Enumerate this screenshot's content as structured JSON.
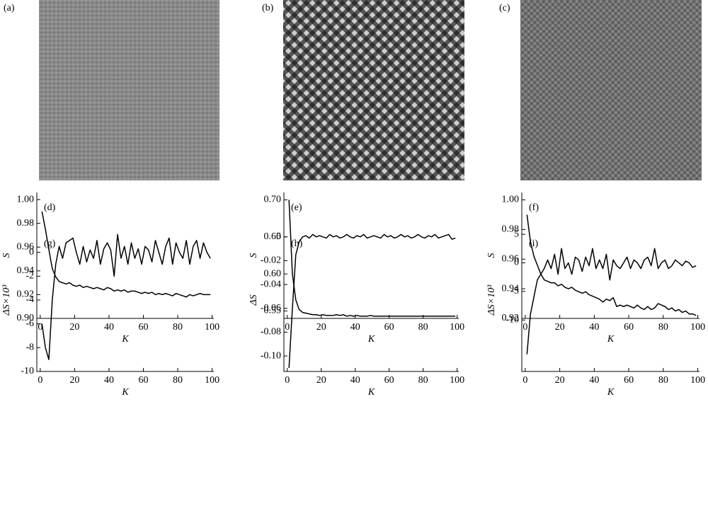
{
  "images": [
    {
      "label": "(a)"
    },
    {
      "label": "(b)"
    },
    {
      "label": "(c)"
    }
  ],
  "chart_data": [
    {
      "type": "line",
      "label": "(d)",
      "xlabel": "K",
      "ylabel": "S",
      "color": "#000000",
      "x": [
        1,
        3,
        5,
        7,
        9,
        11,
        13,
        15,
        17,
        19,
        21,
        23,
        25,
        27,
        29,
        31,
        33,
        35,
        37,
        39,
        41,
        43,
        45,
        47,
        49,
        51,
        53,
        55,
        57,
        59,
        61,
        63,
        65,
        67,
        69,
        71,
        73,
        75,
        77,
        79,
        81,
        83,
        85,
        87,
        89,
        91,
        93,
        95,
        97,
        99
      ],
      "values": [
        0.99,
        0.975,
        0.958,
        0.942,
        0.935,
        0.931,
        0.93,
        0.929,
        0.93,
        0.928,
        0.927,
        0.928,
        0.926,
        0.927,
        0.926,
        0.925,
        0.926,
        0.925,
        0.924,
        0.926,
        0.925,
        0.923,
        0.924,
        0.923,
        0.924,
        0.922,
        0.923,
        0.923,
        0.922,
        0.921,
        0.922,
        0.921,
        0.922,
        0.92,
        0.921,
        0.92,
        0.921,
        0.92,
        0.919,
        0.921,
        0.92,
        0.919,
        0.918,
        0.92,
        0.919,
        0.92,
        0.921,
        0.92,
        0.92,
        0.92
      ],
      "xlim": [
        -2,
        101
      ],
      "xticks": [
        0,
        20,
        40,
        60,
        80,
        100
      ],
      "ylim": [
        0.9,
        1.006
      ],
      "yticks": [
        {
          "value": 0.9,
          "label": "0.90"
        },
        0.92,
        0.94,
        0.96,
        0.98,
        {
          "value": 1.0,
          "label": "1.00"
        }
      ]
    },
    {
      "type": "line",
      "label": "(e)",
      "xlabel": "K",
      "ylabel": "S",
      "color": "#000000",
      "x": [
        1,
        3,
        5,
        7,
        9,
        11,
        13,
        15,
        17,
        19,
        21,
        23,
        25,
        27,
        29,
        31,
        33,
        35,
        37,
        39,
        41,
        43,
        45,
        47,
        49,
        51,
        53,
        55,
        57,
        59,
        61,
        63,
        65,
        67,
        69,
        71,
        73,
        75,
        77,
        79,
        81,
        83,
        85,
        87,
        89,
        91,
        93,
        95,
        97,
        99
      ],
      "values": [
        0.7,
        0.6,
        0.565,
        0.552,
        0.548,
        0.547,
        0.546,
        0.545,
        0.545,
        0.544,
        0.545,
        0.544,
        0.544,
        0.544,
        0.545,
        0.544,
        0.545,
        0.543,
        0.544,
        0.543,
        0.544,
        0.543,
        0.543,
        0.543,
        0.544,
        0.543,
        0.543,
        0.543,
        0.543,
        0.543,
        0.543,
        0.543,
        0.543,
        0.543,
        0.543,
        0.543,
        0.543,
        0.543,
        0.543,
        0.543,
        0.543,
        0.543,
        0.543,
        0.543,
        0.543,
        0.543,
        0.543,
        0.543,
        0.543,
        0.543
      ],
      "xlim": [
        -2,
        101
      ],
      "xticks": [
        0,
        20,
        40,
        60,
        80,
        100
      ],
      "ylim": [
        0.54,
        0.71
      ],
      "yticks": [
        0.55,
        {
          "value": 0.6,
          "label": "0.60"
        },
        0.65,
        {
          "value": 0.7,
          "label": "0.70"
        }
      ]
    },
    {
      "type": "line",
      "label": "(f)",
      "xlabel": "K",
      "ylabel": "S",
      "color": "#000000",
      "x": [
        1,
        3,
        5,
        7,
        9,
        11,
        13,
        15,
        17,
        19,
        21,
        23,
        25,
        27,
        29,
        31,
        33,
        35,
        37,
        39,
        41,
        43,
        45,
        47,
        49,
        51,
        53,
        55,
        57,
        59,
        61,
        63,
        65,
        67,
        69,
        71,
        73,
        75,
        77,
        79,
        81,
        83,
        85,
        87,
        89,
        91,
        93,
        95,
        97,
        99
      ],
      "values": [
        0.99,
        0.972,
        0.962,
        0.956,
        0.95,
        0.946,
        0.945,
        0.944,
        0.944,
        0.942,
        0.943,
        0.941,
        0.94,
        0.941,
        0.939,
        0.938,
        0.937,
        0.938,
        0.936,
        0.935,
        0.934,
        0.933,
        0.931,
        0.933,
        0.932,
        0.934,
        0.928,
        0.929,
        0.928,
        0.929,
        0.928,
        0.927,
        0.929,
        0.927,
        0.926,
        0.928,
        0.926,
        0.927,
        0.93,
        0.929,
        0.928,
        0.926,
        0.927,
        0.925,
        0.926,
        0.924,
        0.925,
        0.923,
        0.923,
        0.922
      ],
      "xlim": [
        -2,
        101
      ],
      "xticks": [
        0,
        20,
        40,
        60,
        80,
        100
      ],
      "ylim": [
        0.92,
        1.005
      ],
      "yticks": [
        0.92,
        0.94,
        0.96,
        0.98,
        {
          "value": 1.0,
          "label": "1.00"
        }
      ]
    },
    {
      "type": "line",
      "label": "(g)",
      "xlabel": "K",
      "ylabel": "ΔS×10³",
      "color": "#000000",
      "x": [
        1,
        3,
        5,
        7,
        9,
        11,
        13,
        15,
        17,
        19,
        21,
        23,
        25,
        27,
        29,
        31,
        33,
        35,
        37,
        39,
        41,
        43,
        45,
        47,
        49,
        51,
        53,
        55,
        57,
        59,
        61,
        63,
        65,
        67,
        69,
        71,
        73,
        75,
        77,
        79,
        81,
        83,
        85,
        87,
        89,
        91,
        93,
        95,
        97,
        99
      ],
      "values": [
        -6,
        -8,
        -9,
        -4,
        -1,
        0.5,
        -0.5,
        0.8,
        1,
        1.2,
        0,
        -1,
        0.5,
        -0.8,
        0.2,
        -0.5,
        1,
        -1,
        0.3,
        0.8,
        0.2,
        -2,
        1.5,
        -0.5,
        0.5,
        -1,
        0.8,
        -0.5,
        0.3,
        -1,
        0.5,
        0.2,
        -0.8,
        1,
        0,
        -1,
        0.5,
        1.2,
        -1,
        0.8,
        0,
        -0.5,
        1,
        -1,
        0.5,
        1,
        -0.5,
        0.8,
        0,
        -0.5
      ],
      "xlim": [
        -2,
        101
      ],
      "xticks": [
        0,
        20,
        40,
        60,
        80,
        100
      ],
      "ylim": [
        -10,
        2
      ],
      "yticks": [
        -10,
        -8,
        -6,
        -4,
        -2,
        0
      ]
    },
    {
      "type": "line",
      "label": "(h)",
      "xlabel": "K",
      "ylabel": "ΔS",
      "color": "#000000",
      "x": [
        1,
        3,
        5,
        7,
        9,
        11,
        13,
        15,
        17,
        19,
        21,
        23,
        25,
        27,
        29,
        31,
        33,
        35,
        37,
        39,
        41,
        43,
        45,
        47,
        49,
        51,
        53,
        55,
        57,
        59,
        61,
        63,
        65,
        67,
        69,
        71,
        73,
        75,
        77,
        79,
        81,
        83,
        85,
        87,
        89,
        91,
        93,
        95,
        97,
        99
      ],
      "values": [
        -0.11,
        -0.06,
        -0.015,
        -0.004,
        0,
        0.001,
        -0.001,
        0.002,
        0,
        0.001,
        0,
        -0.001,
        0.002,
        0,
        0.001,
        -0.001,
        0,
        0.002,
        0,
        -0.001,
        0.001,
        0,
        0.002,
        -0.001,
        0,
        0.001,
        0,
        -0.001,
        0.002,
        0,
        0.001,
        -0.001,
        0,
        0.002,
        0,
        0.001,
        -0.001,
        0,
        0.002,
        0,
        -0.001,
        0.001,
        0,
        0.002,
        -0.001,
        0,
        0.001,
        0.002,
        -0.002,
        -0.001
      ],
      "xlim": [
        -2,
        101
      ],
      "xticks": [
        0,
        20,
        40,
        60,
        80,
        100
      ],
      "ylim": [
        -0.113,
        0.007
      ],
      "yticks": [
        {
          "value": -0.1,
          "label": "-0.10"
        },
        -0.08,
        -0.06,
        -0.04,
        -0.02,
        0
      ]
    },
    {
      "type": "line",
      "label": "(i)",
      "xlabel": "K",
      "ylabel": "ΔS×10³",
      "color": "#000000",
      "x": [
        1,
        3,
        5,
        7,
        9,
        11,
        13,
        15,
        17,
        19,
        21,
        23,
        25,
        27,
        29,
        31,
        33,
        35,
        37,
        39,
        41,
        43,
        45,
        47,
        49,
        51,
        53,
        55,
        57,
        59,
        61,
        63,
        65,
        67,
        69,
        71,
        73,
        75,
        77,
        79,
        81,
        83,
        85,
        87,
        89,
        91,
        93,
        95,
        97,
        99
      ],
      "values": [
        -16,
        -9,
        -6,
        -3,
        -2,
        -1,
        0.5,
        -1,
        1.5,
        -2,
        2.5,
        -1,
        0,
        -2,
        1,
        0.5,
        -1.5,
        1,
        -0.5,
        2.5,
        -1,
        0.5,
        -1,
        1.5,
        -3,
        0.5,
        -0.5,
        -1,
        0,
        1,
        -1,
        0.5,
        0,
        -1,
        0.5,
        1,
        -0.5,
        2.5,
        -1,
        0,
        0.5,
        -1,
        -0.5,
        0.5,
        0,
        -0.5,
        0.3,
        0,
        -0.8,
        -0.5
      ],
      "xlim": [
        -2,
        101
      ],
      "xticks": [
        0,
        20,
        40,
        60,
        80,
        100
      ],
      "ylim": [
        -19,
        6
      ],
      "yticks": [
        -10,
        -5,
        0,
        5
      ]
    }
  ]
}
